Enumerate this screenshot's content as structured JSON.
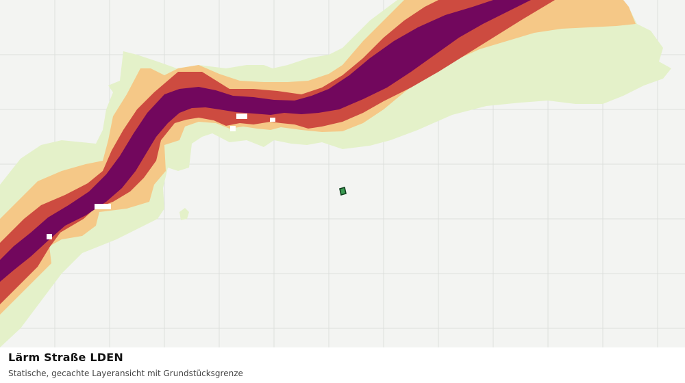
{
  "map": {
    "layer_title": "Lärm Straße LDEN",
    "layer_subtitle": "Statische, gecachte Layeransicht mit Grundstücksgrenze",
    "colors": {
      "background": "#f3f4f2",
      "grid": "#dcdfdc",
      "noise_band_1": "#e4f1c9",
      "noise_band_2": "#f5c887",
      "noise_band_3": "#cd4b40",
      "noise_band_4": "#72075d",
      "parcel_fill": "#3a9a52",
      "parcel_outline": "#0d3d1c"
    },
    "noise_band_order": [
      "noise_band_1",
      "noise_band_2",
      "noise_band_3",
      "noise_band_4"
    ]
  }
}
